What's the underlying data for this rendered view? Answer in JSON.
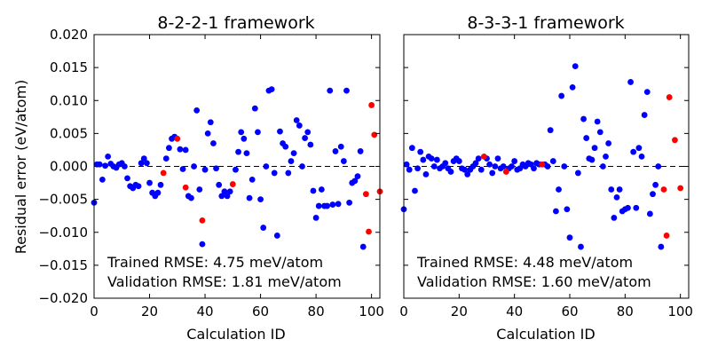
{
  "chart_data": [
    {
      "type": "scatter",
      "title": "8-2-2-1 framework",
      "xlabel": "Calculation ID",
      "ylabel": "Residual error (eV/atom)",
      "xlim": [
        0,
        103
      ],
      "ylim": [
        -0.02,
        0.02
      ],
      "xticks": [
        0,
        20,
        40,
        60,
        80,
        100
      ],
      "yticks": [
        -0.02,
        -0.015,
        -0.01,
        -0.005,
        0.0,
        0.005,
        0.01,
        0.015,
        0.02
      ],
      "ytick_labels": [
        "−0.020",
        "−0.015",
        "−0.010",
        "−0.005",
        "0.000",
        "0.005",
        "0.010",
        "0.015",
        "0.020"
      ],
      "show_ytick_labels": true,
      "zero_line": "dashed",
      "annotations": [
        {
          "text": "Trained RMSE: 4.75 meV/atom",
          "color": "#0000ff"
        },
        {
          "text": "Validation RMSE: 1.81 meV/atom",
          "color": "#ff0000"
        }
      ],
      "series": [
        {
          "name": "Trained",
          "color": "#0000ff",
          "points": [
            [
              0,
              -0.0055
            ],
            [
              1,
              0.0003
            ],
            [
              2,
              0.0003
            ],
            [
              3,
              -0.002
            ],
            [
              4,
              0.0001
            ],
            [
              5,
              0.0015
            ],
            [
              6,
              0.0004
            ],
            [
              7,
              0.0
            ],
            [
              8,
              -0.0002
            ],
            [
              9,
              0.0003
            ],
            [
              10,
              0.0005
            ],
            [
              11,
              0.0
            ],
            [
              12,
              -0.0018
            ],
            [
              13,
              -0.003
            ],
            [
              14,
              -0.0033
            ],
            [
              15,
              -0.0028
            ],
            [
              16,
              -0.003
            ],
            [
              17,
              0.0005
            ],
            [
              18,
              0.0012
            ],
            [
              19,
              0.0005
            ],
            [
              20,
              -0.0025
            ],
            [
              21,
              -0.004
            ],
            [
              22,
              -0.0045
            ],
            [
              23,
              -0.004
            ],
            [
              24,
              -0.0028
            ],
            [
              26,
              0.0012
            ],
            [
              27,
              0.0028
            ],
            [
              28,
              0.0042
            ],
            [
              29,
              0.0045
            ],
            [
              31,
              0.0026
            ],
            [
              32,
              -0.0004
            ],
            [
              33,
              0.0025
            ],
            [
              34,
              -0.0045
            ],
            [
              35,
              -0.0048
            ],
            [
              36,
              0.0
            ],
            [
              37,
              0.0085
            ],
            [
              38,
              -0.0035
            ],
            [
              39,
              -0.0118
            ],
            [
              40,
              -0.0005
            ],
            [
              41,
              0.005
            ],
            [
              42,
              0.0067
            ],
            [
              43,
              0.0035
            ],
            [
              44,
              -0.0003
            ],
            [
              45,
              -0.0028
            ],
            [
              46,
              -0.0045
            ],
            [
              47,
              -0.0038
            ],
            [
              48,
              -0.0045
            ],
            [
              49,
              -0.0038
            ],
            [
              51,
              -0.0005
            ],
            [
              52,
              0.0022
            ],
            [
              53,
              0.0052
            ],
            [
              54,
              0.0042
            ],
            [
              55,
              0.002
            ],
            [
              56,
              -0.0048
            ],
            [
              57,
              -0.002
            ],
            [
              58,
              0.0088
            ],
            [
              59,
              0.0052
            ],
            [
              60,
              -0.005
            ],
            [
              61,
              -0.0093
            ],
            [
              62,
              0.0
            ],
            [
              63,
              0.0115
            ],
            [
              64,
              0.0117
            ],
            [
              65,
              -0.001
            ],
            [
              66,
              -0.0105
            ],
            [
              67,
              0.0053
            ],
            [
              68,
              0.0035
            ],
            [
              69,
              0.003
            ],
            [
              70,
              -0.001
            ],
            [
              71,
              0.0008
            ],
            [
              72,
              0.002
            ],
            [
              73,
              0.007
            ],
            [
              74,
              0.0062
            ],
            [
              75,
              0.0
            ],
            [
              76,
              0.0043
            ],
            [
              77,
              0.0052
            ],
            [
              78,
              0.0033
            ],
            [
              79,
              -0.0037
            ],
            [
              80,
              -0.0078
            ],
            [
              81,
              -0.006
            ],
            [
              82,
              -0.0035
            ],
            [
              83,
              -0.006
            ],
            [
              84,
              -0.006
            ],
            [
              85,
              0.0115
            ],
            [
              86,
              -0.0058
            ],
            [
              87,
              0.0023
            ],
            [
              88,
              -0.0057
            ],
            [
              89,
              0.003
            ],
            [
              90,
              0.0008
            ],
            [
              91,
              0.0115
            ],
            [
              92,
              -0.0055
            ],
            [
              93,
              -0.0025
            ],
            [
              94,
              -0.0022
            ],
            [
              95,
              -0.0015
            ],
            [
              96,
              0.0023
            ],
            [
              97,
              -0.0122
            ]
          ]
        },
        {
          "name": "Validation",
          "color": "#ff0000",
          "points": [
            [
              25,
              -0.001
            ],
            [
              30,
              0.0042
            ],
            [
              33,
              -0.0032
            ],
            [
              39,
              -0.0082
            ],
            [
              50,
              -0.0027
            ],
            [
              98,
              -0.0042
            ],
            [
              99,
              -0.0099
            ],
            [
              100,
              0.0093
            ],
            [
              101,
              0.0048
            ],
            [
              103,
              -0.0038
            ]
          ]
        }
      ]
    },
    {
      "type": "scatter",
      "title": "8-3-3-1 framework",
      "xlabel": "Calculation ID",
      "ylabel": "",
      "xlim": [
        0,
        103
      ],
      "ylim": [
        -0.02,
        0.02
      ],
      "xticks": [
        0,
        20,
        40,
        60,
        80,
        100
      ],
      "yticks": [
        -0.02,
        -0.015,
        -0.01,
        -0.005,
        0.0,
        0.005,
        0.01,
        0.015,
        0.02
      ],
      "ytick_labels": [],
      "show_ytick_labels": false,
      "zero_line": "dashed",
      "annotations": [
        {
          "text": "Trained RMSE: 4.48 meV/atom",
          "color": "#0000ff"
        },
        {
          "text": "Validation RMSE: 1.60 meV/atom",
          "color": "#ff0000"
        }
      ],
      "series": [
        {
          "name": "Trained",
          "color": "#0000ff",
          "points": [
            [
              0,
              -0.0065
            ],
            [
              1,
              0.0003
            ],
            [
              2,
              -0.0005
            ],
            [
              3,
              0.0028
            ],
            [
              4,
              -0.0037
            ],
            [
              5,
              -0.0003
            ],
            [
              6,
              0.0022
            ],
            [
              7,
              0.001
            ],
            [
              8,
              -0.0012
            ],
            [
              9,
              0.0015
            ],
            [
              10,
              0.0012
            ],
            [
              11,
              0.0
            ],
            [
              12,
              0.001
            ],
            [
              13,
              -0.0003
            ],
            [
              14,
              0.0
            ],
            [
              15,
              0.0005
            ],
            [
              16,
              -0.0003
            ],
            [
              17,
              -0.0008
            ],
            [
              18,
              0.0008
            ],
            [
              19,
              0.0012
            ],
            [
              20,
              0.0008
            ],
            [
              21,
              -0.0003
            ],
            [
              22,
              -0.0005
            ],
            [
              23,
              -0.0012
            ],
            [
              24,
              -0.0005
            ],
            [
              25,
              0.0
            ],
            [
              26,
              0.0005
            ],
            [
              27,
              0.0012
            ],
            [
              28,
              -0.0005
            ],
            [
              30,
              0.0012
            ],
            [
              31,
              0.0003
            ],
            [
              32,
              -0.001
            ],
            [
              33,
              0.0
            ],
            [
              34,
              0.0012
            ],
            [
              35,
              -0.0003
            ],
            [
              36,
              0.0
            ],
            [
              38,
              -0.0003
            ],
            [
              39,
              0.0
            ],
            [
              40,
              0.0008
            ],
            [
              41,
              -0.0005
            ],
            [
              42,
              -0.0003
            ],
            [
              43,
              0.0003
            ],
            [
              44,
              0.0
            ],
            [
              45,
              0.0005
            ],
            [
              46,
              0.0003
            ],
            [
              47,
              -0.0003
            ],
            [
              48,
              0.0005
            ],
            [
              49,
              0.0003
            ],
            [
              51,
              0.0003
            ],
            [
              52,
              0.0
            ],
            [
              53,
              0.0055
            ],
            [
              54,
              0.0008
            ],
            [
              55,
              -0.0068
            ],
            [
              56,
              -0.0035
            ],
            [
              57,
              0.0107
            ],
            [
              58,
              0.0
            ],
            [
              59,
              -0.0065
            ],
            [
              60,
              -0.0108
            ],
            [
              61,
              0.012
            ],
            [
              62,
              0.0152
            ],
            [
              63,
              -0.001
            ],
            [
              64,
              -0.0122
            ],
            [
              65,
              0.0072
            ],
            [
              66,
              0.0043
            ],
            [
              67,
              0.0012
            ],
            [
              68,
              0.001
            ],
            [
              69,
              0.0028
            ],
            [
              70,
              0.0068
            ],
            [
              71,
              0.0052
            ],
            [
              72,
              0.0
            ],
            [
              73,
              0.0015
            ],
            [
              74,
              0.0035
            ],
            [
              75,
              -0.0035
            ],
            [
              76,
              -0.0078
            ],
            [
              77,
              -0.0047
            ],
            [
              78,
              -0.0035
            ],
            [
              79,
              -0.0068
            ],
            [
              80,
              -0.0065
            ],
            [
              81,
              -0.0063
            ],
            [
              82,
              0.0128
            ],
            [
              83,
              0.0022
            ],
            [
              84,
              -0.0063
            ],
            [
              85,
              0.0028
            ],
            [
              86,
              0.0015
            ],
            [
              87,
              0.0078
            ],
            [
              88,
              0.0113
            ],
            [
              89,
              -0.0072
            ],
            [
              90,
              -0.0042
            ],
            [
              91,
              -0.0028
            ],
            [
              92,
              0.0
            ],
            [
              93,
              -0.0122
            ]
          ]
        },
        {
          "name": "Validation",
          "color": "#ff0000",
          "points": [
            [
              29,
              0.0015
            ],
            [
              37,
              -0.0008
            ],
            [
              50,
              0.0003
            ],
            [
              94,
              -0.0035
            ],
            [
              95,
              -0.0105
            ],
            [
              96,
              0.0105
            ],
            [
              98,
              0.004
            ],
            [
              100,
              -0.0033
            ]
          ]
        }
      ]
    }
  ]
}
